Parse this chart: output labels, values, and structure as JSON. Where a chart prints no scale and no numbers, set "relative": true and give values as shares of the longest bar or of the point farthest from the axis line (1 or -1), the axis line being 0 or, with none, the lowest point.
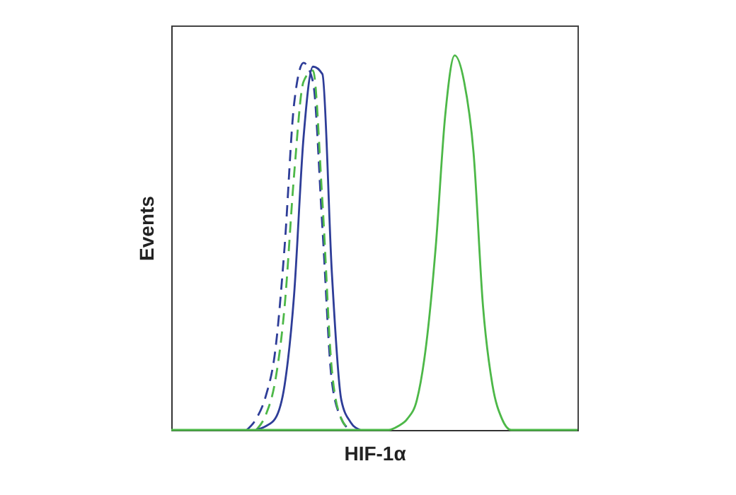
{
  "chart_data": {
    "type": "line",
    "relative": true,
    "xlabel": "HIF-1α",
    "ylabel": "Events",
    "grid": false,
    "tick_labels": false,
    "categories": [
      null,
      null,
      null,
      null,
      null,
      null,
      null,
      null,
      null,
      null,
      null,
      null,
      null,
      null,
      null,
      null,
      null,
      null,
      null,
      null,
      null,
      null,
      null,
      null,
      null,
      null,
      null,
      null,
      null,
      null,
      null,
      null,
      null,
      null,
      null,
      null,
      null,
      null,
      null,
      null,
      null,
      null,
      null,
      null
    ],
    "series": [
      {
        "color": "#2e3d98",
        "line_style": "dashed",
        "values": [
          null,
          null,
          null,
          null,
          null,
          null,
          null,
          null,
          0,
          0.03,
          0.09,
          0.21,
          0.49,
          0.87,
          0.98,
          0.93,
          0.54,
          0.13,
          0.03,
          0,
          null,
          null,
          null,
          null,
          null,
          null,
          null,
          null,
          null,
          null,
          null,
          null,
          null,
          null,
          null,
          null,
          null,
          null,
          null,
          null,
          null,
          null,
          null,
          null
        ]
      },
      {
        "color": "#4db848",
        "line_style": "dashed",
        "values": [
          null,
          null,
          null,
          null,
          null,
          null,
          null,
          null,
          null,
          0,
          0.04,
          0.13,
          0.33,
          0.68,
          0.93,
          0.96,
          0.61,
          0.16,
          0.03,
          0,
          null,
          null,
          null,
          null,
          null,
          null,
          null,
          null,
          null,
          null,
          null,
          null,
          null,
          null,
          null,
          null,
          null,
          null,
          null,
          null,
          null,
          null,
          null,
          null
        ]
      },
      {
        "color": "#2e3d98",
        "line_style": "solid",
        "values": [
          null,
          null,
          null,
          null,
          null,
          null,
          null,
          null,
          null,
          0,
          0.01,
          0.03,
          0.12,
          0.36,
          0.78,
          0.97,
          0.95,
          0.42,
          0.08,
          0.02,
          0,
          null,
          null,
          null,
          null,
          null,
          null,
          null,
          null,
          null,
          null,
          null,
          null,
          null,
          null,
          null,
          null,
          null,
          null,
          null,
          null,
          null,
          null,
          null
        ]
      },
      {
        "color": "#4db848",
        "line_style": "solid",
        "values": [
          0,
          0,
          0,
          0,
          0,
          0,
          0,
          0,
          0,
          0,
          0,
          0,
          0,
          0,
          0,
          0,
          0,
          0,
          0,
          0,
          0,
          0,
          0,
          0,
          0.01,
          0.03,
          0.08,
          0.23,
          0.49,
          0.84,
          1,
          0.93,
          0.74,
          0.33,
          0.12,
          0.03,
          0,
          0,
          0,
          0,
          0,
          0,
          0,
          0
        ]
      }
    ]
  }
}
